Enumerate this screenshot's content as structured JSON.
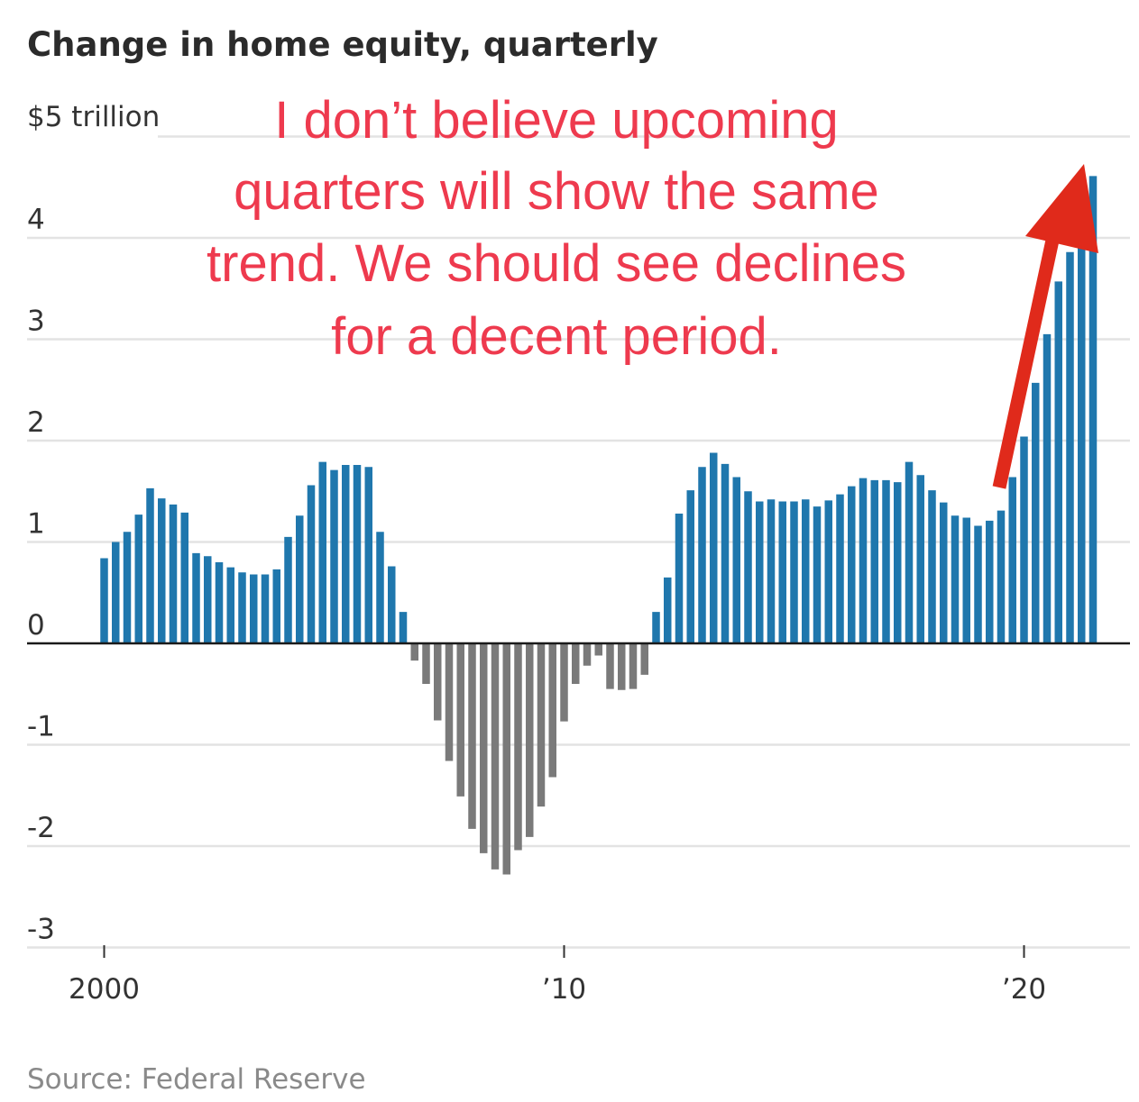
{
  "chart_data": {
    "type": "bar",
    "title": "Change in home equity, quarterly",
    "unit_label": "$5 trillion",
    "source": "Source: Federal Reserve",
    "annotation": {
      "lines": [
        "I don’t believe upcoming",
        "quarters will show the same",
        "trend. We should see declines",
        "for a decent period."
      ],
      "color": "#ee3a4e",
      "arrow_color": "#e02a1b"
    },
    "ylim": [
      -3,
      5
    ],
    "y_ticks": [
      {
        "value": 5,
        "label": ""
      },
      {
        "value": 4,
        "label": "4"
      },
      {
        "value": 3,
        "label": "3"
      },
      {
        "value": 2,
        "label": "2"
      },
      {
        "value": 1,
        "label": "1"
      },
      {
        "value": 0,
        "label": "0"
      },
      {
        "value": -1,
        "label": "-1"
      },
      {
        "value": -2,
        "label": "-2"
      },
      {
        "value": -3,
        "label": "-3"
      }
    ],
    "x_ticks": [
      {
        "year": 2000,
        "label": "2000"
      },
      {
        "year": 2010,
        "label": "’10"
      },
      {
        "year": 2020,
        "label": "’20"
      }
    ],
    "grid": true,
    "colors": {
      "positive": "#1f77ad",
      "negative": "#7a7a7a"
    },
    "x_start": 2000,
    "values": [
      0.84,
      1.0,
      1.1,
      1.27,
      1.53,
      1.43,
      1.37,
      1.29,
      0.89,
      0.86,
      0.8,
      0.75,
      0.7,
      0.68,
      0.68,
      0.73,
      1.05,
      1.26,
      1.56,
      1.79,
      1.71,
      1.76,
      1.76,
      1.74,
      1.1,
      0.76,
      0.31,
      -0.17,
      -0.4,
      -0.76,
      -1.16,
      -1.51,
      -1.83,
      -2.07,
      -2.23,
      -2.28,
      -2.04,
      -1.91,
      -1.61,
      -1.32,
      -0.77,
      -0.4,
      -0.22,
      -0.12,
      -0.45,
      -0.46,
      -0.45,
      -0.31,
      0.31,
      0.65,
      1.28,
      1.51,
      1.74,
      1.88,
      1.77,
      1.64,
      1.5,
      1.4,
      1.42,
      1.4,
      1.4,
      1.42,
      1.35,
      1.41,
      1.47,
      1.55,
      1.63,
      1.61,
      1.61,
      1.59,
      1.79,
      1.66,
      1.51,
      1.39,
      1.26,
      1.24,
      1.16,
      1.21,
      1.31,
      1.64,
      2.04,
      2.57,
      3.05,
      3.57,
      3.86,
      4.27,
      4.61
    ]
  }
}
